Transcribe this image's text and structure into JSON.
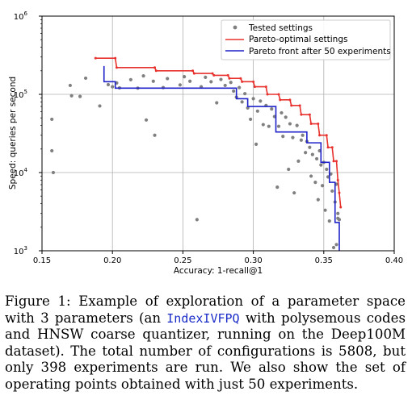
{
  "chart_data": {
    "type": "scatter",
    "xlabel": "Accuracy: 1-recall@1",
    "ylabel": "Speed: queries per second",
    "xlim": [
      0.15,
      0.4
    ],
    "ylim": [
      1000,
      1000000
    ],
    "yscale": "log",
    "x_ticks": [
      "0.15",
      "0.20",
      "0.25",
      "0.30",
      "0.35",
      "0.40"
    ],
    "y_ticks": [
      {
        "base": "10",
        "exp": "3"
      },
      {
        "base": "10",
        "exp": "4"
      },
      {
        "base": "10",
        "exp": "5"
      },
      {
        "base": "10",
        "exp": "6"
      }
    ],
    "grid": true,
    "legend_position": "top-right",
    "series": [
      {
        "name": "Tested settings",
        "kind": "scatter",
        "color": "#808080",
        "points": [
          [
            0.157,
            48000
          ],
          [
            0.157,
            19000
          ],
          [
            0.158,
            10000
          ],
          [
            0.17,
            130000
          ],
          [
            0.171,
            96000
          ],
          [
            0.177,
            94000
          ],
          [
            0.181,
            161000
          ],
          [
            0.191,
            71000
          ],
          [
            0.197,
            133000
          ],
          [
            0.2,
            125000
          ],
          [
            0.203,
            140000
          ],
          [
            0.205,
            121000
          ],
          [
            0.213,
            154000
          ],
          [
            0.218,
            120000
          ],
          [
            0.222,
            172000
          ],
          [
            0.224,
            47000
          ],
          [
            0.229,
            147000
          ],
          [
            0.23,
            30000
          ],
          [
            0.236,
            122000
          ],
          [
            0.239,
            159000
          ],
          [
            0.248,
            132000
          ],
          [
            0.251,
            168000
          ],
          [
            0.255,
            147000
          ],
          [
            0.26,
            2500
          ],
          [
            0.263,
            125000
          ],
          [
            0.266,
            165000
          ],
          [
            0.27,
            145000
          ],
          [
            0.274,
            78000
          ],
          [
            0.277,
            155000
          ],
          [
            0.28,
            130000
          ],
          [
            0.284,
            142000
          ],
          [
            0.286,
            110000
          ],
          [
            0.288,
            92000
          ],
          [
            0.29,
            122000
          ],
          [
            0.292,
            80000
          ],
          [
            0.294,
            102000
          ],
          [
            0.296,
            67000
          ],
          [
            0.298,
            48000
          ],
          [
            0.3,
            88000
          ],
          [
            0.302,
            23000
          ],
          [
            0.303,
            61000
          ],
          [
            0.305,
            82000
          ],
          [
            0.307,
            41000
          ],
          [
            0.309,
            72000
          ],
          [
            0.311,
            39000
          ],
          [
            0.313,
            65000
          ],
          [
            0.315,
            52000
          ],
          [
            0.317,
            6500
          ],
          [
            0.318,
            39000
          ],
          [
            0.32,
            58000
          ],
          [
            0.321,
            29000
          ],
          [
            0.323,
            51000
          ],
          [
            0.325,
            11000
          ],
          [
            0.326,
            42000
          ],
          [
            0.328,
            28000
          ],
          [
            0.329,
            5500
          ],
          [
            0.331,
            40000
          ],
          [
            0.332,
            14000
          ],
          [
            0.334,
            26000
          ],
          [
            0.335,
            30000
          ],
          [
            0.337,
            18000
          ],
          [
            0.338,
            25000
          ],
          [
            0.34,
            21000
          ],
          [
            0.341,
            9000
          ],
          [
            0.342,
            17000
          ],
          [
            0.344,
            7500
          ],
          [
            0.345,
            15000
          ],
          [
            0.346,
            4500
          ],
          [
            0.347,
            19000
          ],
          [
            0.348,
            12500
          ],
          [
            0.349,
            6800
          ],
          [
            0.35,
            13500
          ],
          [
            0.351,
            3300
          ],
          [
            0.352,
            11000
          ],
          [
            0.353,
            8800
          ],
          [
            0.354,
            2400
          ],
          [
            0.355,
            9600
          ],
          [
            0.356,
            5800
          ],
          [
            0.357,
            1100
          ],
          [
            0.358,
            4200
          ],
          [
            0.359,
            1200
          ],
          [
            0.359,
            7100
          ],
          [
            0.36,
            2600
          ],
          [
            0.36,
            3000
          ],
          [
            0.361,
            2500
          ]
        ]
      },
      {
        "name": "Pareto-optimal settings",
        "kind": "step",
        "color": "#e8312c",
        "points": [
          [
            0.188,
            290000
          ],
          [
            0.202,
            290000
          ],
          [
            0.203,
            220000
          ],
          [
            0.23,
            220000
          ],
          [
            0.231,
            200000
          ],
          [
            0.257,
            200000
          ],
          [
            0.258,
            185000
          ],
          [
            0.271,
            185000
          ],
          [
            0.272,
            175000
          ],
          [
            0.282,
            175000
          ],
          [
            0.283,
            160000
          ],
          [
            0.291,
            160000
          ],
          [
            0.292,
            145000
          ],
          [
            0.3,
            145000
          ],
          [
            0.301,
            125000
          ],
          [
            0.309,
            125000
          ],
          [
            0.31,
            100000
          ],
          [
            0.318,
            100000
          ],
          [
            0.319,
            85000
          ],
          [
            0.326,
            85000
          ],
          [
            0.327,
            72000
          ],
          [
            0.333,
            72000
          ],
          [
            0.334,
            55000
          ],
          [
            0.34,
            55000
          ],
          [
            0.341,
            42000
          ],
          [
            0.346,
            42000
          ],
          [
            0.347,
            30000
          ],
          [
            0.352,
            30000
          ],
          [
            0.353,
            21000
          ],
          [
            0.356,
            21000
          ],
          [
            0.357,
            14000
          ],
          [
            0.359,
            14000
          ],
          [
            0.36,
            8000
          ],
          [
            0.361,
            5500
          ],
          [
            0.362,
            3600
          ]
        ]
      },
      {
        "name": "Pareto front after 50 experiments",
        "kind": "step",
        "color": "#1f22c9",
        "points": [
          [
            0.194,
            230000
          ],
          [
            0.194,
            145000
          ],
          [
            0.202,
            145000
          ],
          [
            0.202,
            120000
          ],
          [
            0.288,
            120000
          ],
          [
            0.288,
            88000
          ],
          [
            0.296,
            88000
          ],
          [
            0.296,
            70000
          ],
          [
            0.316,
            70000
          ],
          [
            0.316,
            33000
          ],
          [
            0.338,
            33000
          ],
          [
            0.338,
            24000
          ],
          [
            0.348,
            24000
          ],
          [
            0.348,
            13500
          ],
          [
            0.354,
            13500
          ],
          [
            0.354,
            7500
          ],
          [
            0.358,
            7500
          ],
          [
            0.358,
            2300
          ],
          [
            0.361,
            2300
          ],
          [
            0.361,
            1000
          ]
        ]
      }
    ]
  },
  "caption": {
    "prefix": "Figure 1:  Example of exploration of a parameter space with 3 parameters (an ",
    "code": "IndexIVFPQ",
    "suffix": " with polysemous codes and HNSW coarse quantizer, running on the Deep100M dataset).  The total number of configurations is 5808, but only 398 experiments are run. We also show the set of operating points obtained with just 50 experiments."
  }
}
